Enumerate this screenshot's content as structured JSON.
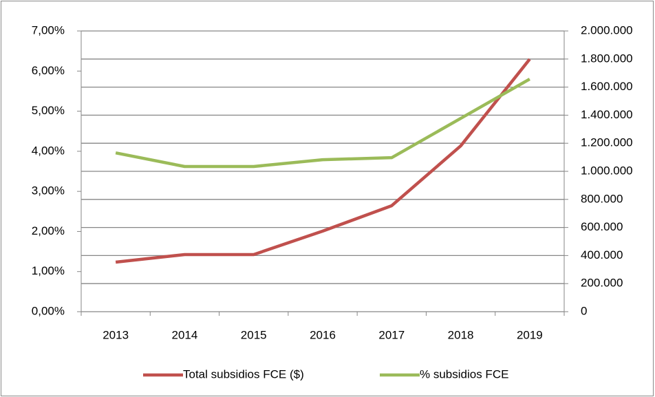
{
  "chart_data": {
    "type": "line",
    "categories": [
      "2013",
      "2014",
      "2015",
      "2016",
      "2017",
      "2018",
      "2019"
    ],
    "series": [
      {
        "name": "Total subsidios FCE ($)",
        "color": "#c0504d",
        "axis": "y2",
        "values": [
          353000,
          407000,
          407000,
          574000,
          755000,
          1181000,
          1799000
        ]
      },
      {
        "name": "% subsidios FCE",
        "color": "#9bbb59",
        "values": [
          3.96,
          3.62,
          3.62,
          3.79,
          3.84,
          4.82,
          5.8
        ]
      }
    ],
    "ylim": [
      0,
      7
    ],
    "yticks": [
      {
        "value": 0,
        "label": "0,00%"
      },
      {
        "value": 1,
        "label": "1,00%"
      },
      {
        "value": 2,
        "label": "2,00%"
      },
      {
        "value": 3,
        "label": "3,00%"
      },
      {
        "value": 4,
        "label": "4,00%"
      },
      {
        "value": 5,
        "label": "5,00%"
      },
      {
        "value": 6,
        "label": "6,00%"
      },
      {
        "value": 7,
        "label": "7,00%"
      }
    ],
    "y2lim": [
      0,
      2000000
    ],
    "y2ticks": [
      0,
      {
        "value": 200000,
        "label": "200.000"
      },
      {
        "value": 400000,
        "label": "400.000"
      },
      {
        "value": 600000,
        "label": "600.000"
      },
      {
        "value": 800000,
        "label": "800.000"
      },
      {
        "value": 1000000,
        "label": "1.000.000"
      },
      {
        "value": 1200000,
        "label": "1.200.000"
      },
      {
        "value": 1400000,
        "label": "1.400.000"
      },
      {
        "value": 1600000,
        "label": "1.600.000"
      },
      {
        "value": 1800000,
        "label": "1.800.000"
      },
      {
        "value": 2000000,
        "label": "2.000.000"
      }
    ],
    "grid": true,
    "legend": "bottom"
  }
}
